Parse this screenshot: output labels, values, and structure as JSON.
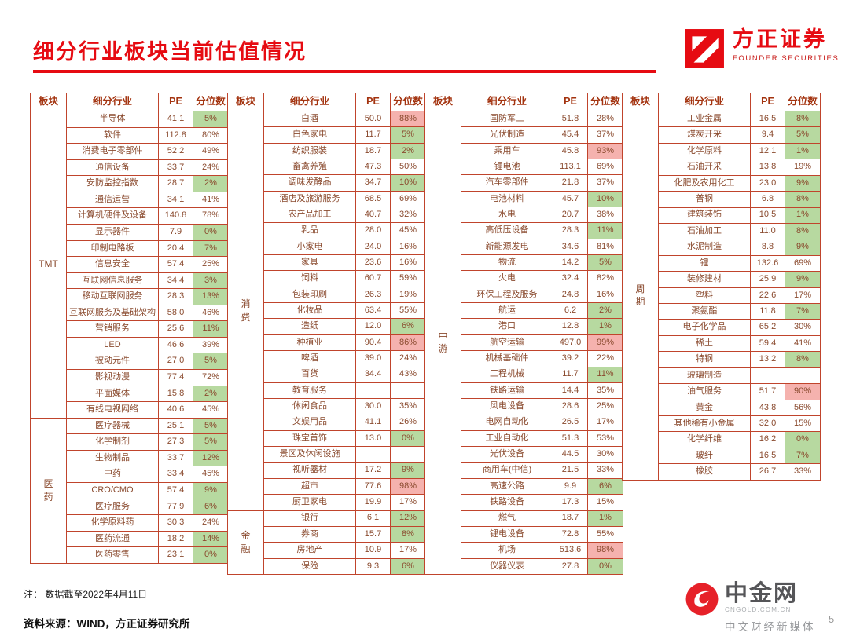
{
  "header": {
    "title": "细分行业板块当前估值情况",
    "brand_name": "方正证券",
    "brand_sub": "FOUNDER SECURITIES"
  },
  "table": {
    "headers": [
      "板块",
      "细分行业",
      "PE",
      "分位数"
    ],
    "row_format": [
      "industry_name",
      "pe",
      "percentile",
      "highlight(g=green,p=pink,empty=none)"
    ],
    "colors": {
      "green_fill": "#b7d9a0",
      "pink_fill": "#f5b2ae",
      "border": "#c0442c",
      "text": "#8a4a2e"
    },
    "groups": [
      {
        "sections": [
          {
            "sector": "TMT",
            "rows": [
              [
                "半导体",
                "41.1",
                "5%",
                "g"
              ],
              [
                "软件",
                "112.8",
                "80%",
                ""
              ],
              [
                "消费电子零部件",
                "52.2",
                "49%",
                ""
              ],
              [
                "通信设备",
                "33.7",
                "24%",
                ""
              ],
              [
                "安防监控指数",
                "28.7",
                "2%",
                "g"
              ],
              [
                "通信运营",
                "34.1",
                "41%",
                ""
              ],
              [
                "计算机硬件及设备",
                "140.8",
                "78%",
                ""
              ],
              [
                "显示器件",
                "7.9",
                "0%",
                "g"
              ],
              [
                "印制电路板",
                "20.4",
                "7%",
                "g"
              ],
              [
                "信息安全",
                "57.4",
                "25%",
                ""
              ],
              [
                "互联网信息服务",
                "34.4",
                "3%",
                "g"
              ],
              [
                "移动互联网服务",
                "28.3",
                "13%",
                "g"
              ],
              [
                "互联网服务及基础架构",
                "58.0",
                "46%",
                ""
              ],
              [
                "营销服务",
                "25.6",
                "11%",
                "g"
              ],
              [
                "LED",
                "46.6",
                "39%",
                ""
              ],
              [
                "被动元件",
                "27.0",
                "5%",
                "g"
              ],
              [
                "影视动漫",
                "77.4",
                "72%",
                ""
              ],
              [
                "平面媒体",
                "15.8",
                "2%",
                "g"
              ],
              [
                "有线电视网络",
                "40.6",
                "45%",
                ""
              ]
            ]
          },
          {
            "sector": "医\n药",
            "rows": [
              [
                "医疗器械",
                "25.1",
                "5%",
                "g"
              ],
              [
                "化学制剂",
                "27.3",
                "5%",
                "g"
              ],
              [
                "生物制品",
                "33.7",
                "12%",
                "g"
              ],
              [
                "中药",
                "33.4",
                "45%",
                ""
              ],
              [
                "CRO/CMO",
                "57.4",
                "9%",
                "g"
              ],
              [
                "医疗服务",
                "77.9",
                "6%",
                "g"
              ],
              [
                "化学原料药",
                "30.3",
                "24%",
                ""
              ],
              [
                "医药流通",
                "18.2",
                "14%",
                "g"
              ],
              [
                "医药零售",
                "23.1",
                "0%",
                "g"
              ]
            ]
          }
        ]
      },
      {
        "sections": [
          {
            "sector": "消\n费",
            "rows": [
              [
                "白酒",
                "50.0",
                "88%",
                "p"
              ],
              [
                "白色家电",
                "11.7",
                "5%",
                "g"
              ],
              [
                "纺织服装",
                "18.7",
                "2%",
                "g"
              ],
              [
                "畜禽养殖",
                "47.3",
                "50%",
                ""
              ],
              [
                "调味发酵品",
                "34.7",
                "10%",
                "g"
              ],
              [
                "酒店及旅游服务",
                "68.5",
                "69%",
                ""
              ],
              [
                "农产品加工",
                "40.7",
                "32%",
                ""
              ],
              [
                "乳品",
                "28.0",
                "45%",
                ""
              ],
              [
                "小家电",
                "24.0",
                "16%",
                ""
              ],
              [
                "家具",
                "23.6",
                "16%",
                ""
              ],
              [
                "饲料",
                "60.7",
                "59%",
                ""
              ],
              [
                "包装印刷",
                "26.3",
                "19%",
                ""
              ],
              [
                "化妆品",
                "63.4",
                "55%",
                ""
              ],
              [
                "造纸",
                "12.0",
                "6%",
                "g"
              ],
              [
                "种植业",
                "90.4",
                "86%",
                "p"
              ],
              [
                "啤酒",
                "39.0",
                "24%",
                ""
              ],
              [
                "百货",
                "34.4",
                "43%",
                ""
              ],
              [
                "教育服务",
                "",
                "",
                ""
              ],
              [
                "休闲食品",
                "30.0",
                "35%",
                ""
              ],
              [
                "文娱用品",
                "41.1",
                "26%",
                ""
              ],
              [
                "珠宝首饰",
                "13.0",
                "0%",
                "g"
              ],
              [
                "景区及休闲设施",
                "",
                "",
                ""
              ],
              [
                "视听器材",
                "17.2",
                "9%",
                "g"
              ],
              [
                "超市",
                "77.6",
                "98%",
                "p"
              ],
              [
                "厨卫家电",
                "19.9",
                "17%",
                ""
              ]
            ]
          },
          {
            "sector": "金\n融",
            "rows": [
              [
                "银行",
                "6.1",
                "12%",
                "g"
              ],
              [
                "券商",
                "15.7",
                "8%",
                "g"
              ],
              [
                "房地产",
                "10.9",
                "17%",
                ""
              ],
              [
                "保险",
                "9.3",
                "6%",
                "g"
              ]
            ]
          }
        ]
      },
      {
        "sections": [
          {
            "sector": "中\n游",
            "rows": [
              [
                "国防军工",
                "51.8",
                "28%",
                ""
              ],
              [
                "光伏制造",
                "45.4",
                "37%",
                ""
              ],
              [
                "乘用车",
                "45.8",
                "93%",
                "p"
              ],
              [
                "锂电池",
                "113.1",
                "69%",
                ""
              ],
              [
                "汽车零部件",
                "21.8",
                "37%",
                ""
              ],
              [
                "电池材料",
                "45.7",
                "10%",
                "g"
              ],
              [
                "水电",
                "20.7",
                "38%",
                ""
              ],
              [
                "高低压设备",
                "28.3",
                "11%",
                "g"
              ],
              [
                "新能源发电",
                "34.6",
                "81%",
                ""
              ],
              [
                "物流",
                "14.2",
                "5%",
                "g"
              ],
              [
                "火电",
                "32.4",
                "82%",
                ""
              ],
              [
                "环保工程及服务",
                "24.8",
                "16%",
                ""
              ],
              [
                "航运",
                "6.2",
                "2%",
                "g"
              ],
              [
                "港口",
                "12.8",
                "1%",
                "g"
              ],
              [
                "航空运输",
                "497.0",
                "99%",
                "p"
              ],
              [
                "机械基础件",
                "39.2",
                "22%",
                ""
              ],
              [
                "工程机械",
                "11.7",
                "11%",
                "g"
              ],
              [
                "铁路运输",
                "14.4",
                "35%",
                ""
              ],
              [
                "风电设备",
                "28.6",
                "25%",
                ""
              ],
              [
                "电网自动化",
                "26.5",
                "17%",
                ""
              ],
              [
                "工业自动化",
                "51.3",
                "53%",
                ""
              ],
              [
                "光伏设备",
                "44.5",
                "30%",
                ""
              ],
              [
                "商用车(中信)",
                "21.5",
                "33%",
                ""
              ],
              [
                "高速公路",
                "9.9",
                "6%",
                "g"
              ],
              [
                "铁路设备",
                "17.3",
                "15%",
                ""
              ],
              [
                "燃气",
                "18.7",
                "1%",
                "g"
              ],
              [
                "锂电设备",
                "72.8",
                "55%",
                ""
              ],
              [
                "机场",
                "513.6",
                "98%",
                "p"
              ],
              [
                "仪器仪表",
                "27.8",
                "0%",
                "g"
              ]
            ]
          }
        ]
      },
      {
        "sections": [
          {
            "sector": "周\n期",
            "rows": [
              [
                "工业金属",
                "16.5",
                "8%",
                "g"
              ],
              [
                "煤炭开采",
                "9.4",
                "5%",
                "g"
              ],
              [
                "化学原料",
                "12.1",
                "1%",
                "g"
              ],
              [
                "石油开采",
                "13.8",
                "19%",
                ""
              ],
              [
                "化肥及农用化工",
                "23.0",
                "9%",
                "g"
              ],
              [
                "普钢",
                "6.8",
                "8%",
                "g"
              ],
              [
                "建筑装饰",
                "10.5",
                "1%",
                "g"
              ],
              [
                "石油加工",
                "11.0",
                "8%",
                "g"
              ],
              [
                "水泥制造",
                "8.8",
                "9%",
                "g"
              ],
              [
                "锂",
                "132.6",
                "69%",
                ""
              ],
              [
                "装修建材",
                "25.9",
                "9%",
                "g"
              ],
              [
                "塑料",
                "22.6",
                "17%",
                ""
              ],
              [
                "聚氨酯",
                "11.8",
                "7%",
                "g"
              ],
              [
                "电子化学品",
                "65.2",
                "30%",
                ""
              ],
              [
                "稀土",
                "59.4",
                "41%",
                ""
              ],
              [
                "特钢",
                "13.2",
                "8%",
                "g"
              ],
              [
                "玻璃制造",
                "",
                "",
                ""
              ],
              [
                "油气服务",
                "51.7",
                "90%",
                "p"
              ],
              [
                "黄金",
                "43.8",
                "56%",
                ""
              ],
              [
                "其他稀有小金属",
                "32.0",
                "15%",
                ""
              ],
              [
                "化学纤维",
                "16.2",
                "0%",
                "g"
              ],
              [
                "玻纤",
                "16.5",
                "7%",
                "g"
              ],
              [
                "橡胶",
                "26.7",
                "33%",
                ""
              ]
            ]
          }
        ]
      }
    ]
  },
  "footer": {
    "note": "注：  数据截至2022年4月11日",
    "source": "资料来源：WIND，方正证券研究所",
    "page": "5",
    "watermark": {
      "title": "中金网",
      "domain": "CNGOLD.COM.CN",
      "tagline": "中文财经新媒体"
    }
  }
}
